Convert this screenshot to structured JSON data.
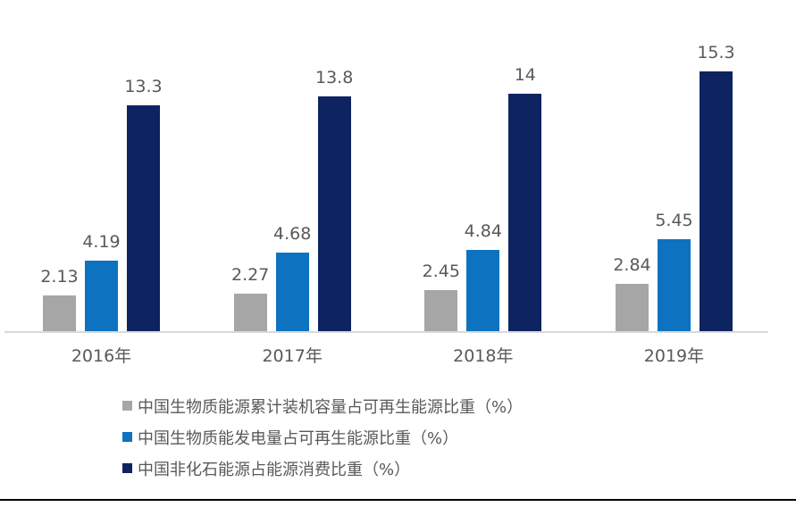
{
  "page": {
    "background": "#ffffff",
    "bottom_rule_color": "#000000"
  },
  "chart_data": {
    "type": "bar",
    "title": "",
    "categories": [
      "2016年",
      "2017年",
      "2018年",
      "2019年"
    ],
    "series": [
      {
        "name": "中国生物质能源累计装机容量占可再生能源比重（%）",
        "color": "#a6a6a6",
        "pattern": "weave",
        "values": [
          2.13,
          2.27,
          2.45,
          2.84
        ]
      },
      {
        "name": "中国生物质能发电量占可再生能源比重（%）",
        "color": "#0d72c0",
        "pattern": "solid",
        "values": [
          4.19,
          4.68,
          4.84,
          5.45
        ]
      },
      {
        "name": "中国非化石能源占能源消费比重（%）",
        "color": "#0d2461",
        "pattern": "solid",
        "values": [
          13.3,
          13.8,
          14,
          15.3
        ]
      }
    ],
    "data_labels": true,
    "data_label_color": "#595959",
    "tick_label_color": "#595959",
    "axis_line_color": "#d9d9d9",
    "legend_text_color": "#595959",
    "legend_position": "bottom-left",
    "grid": false,
    "ylim": [
      0,
      18.5
    ]
  }
}
